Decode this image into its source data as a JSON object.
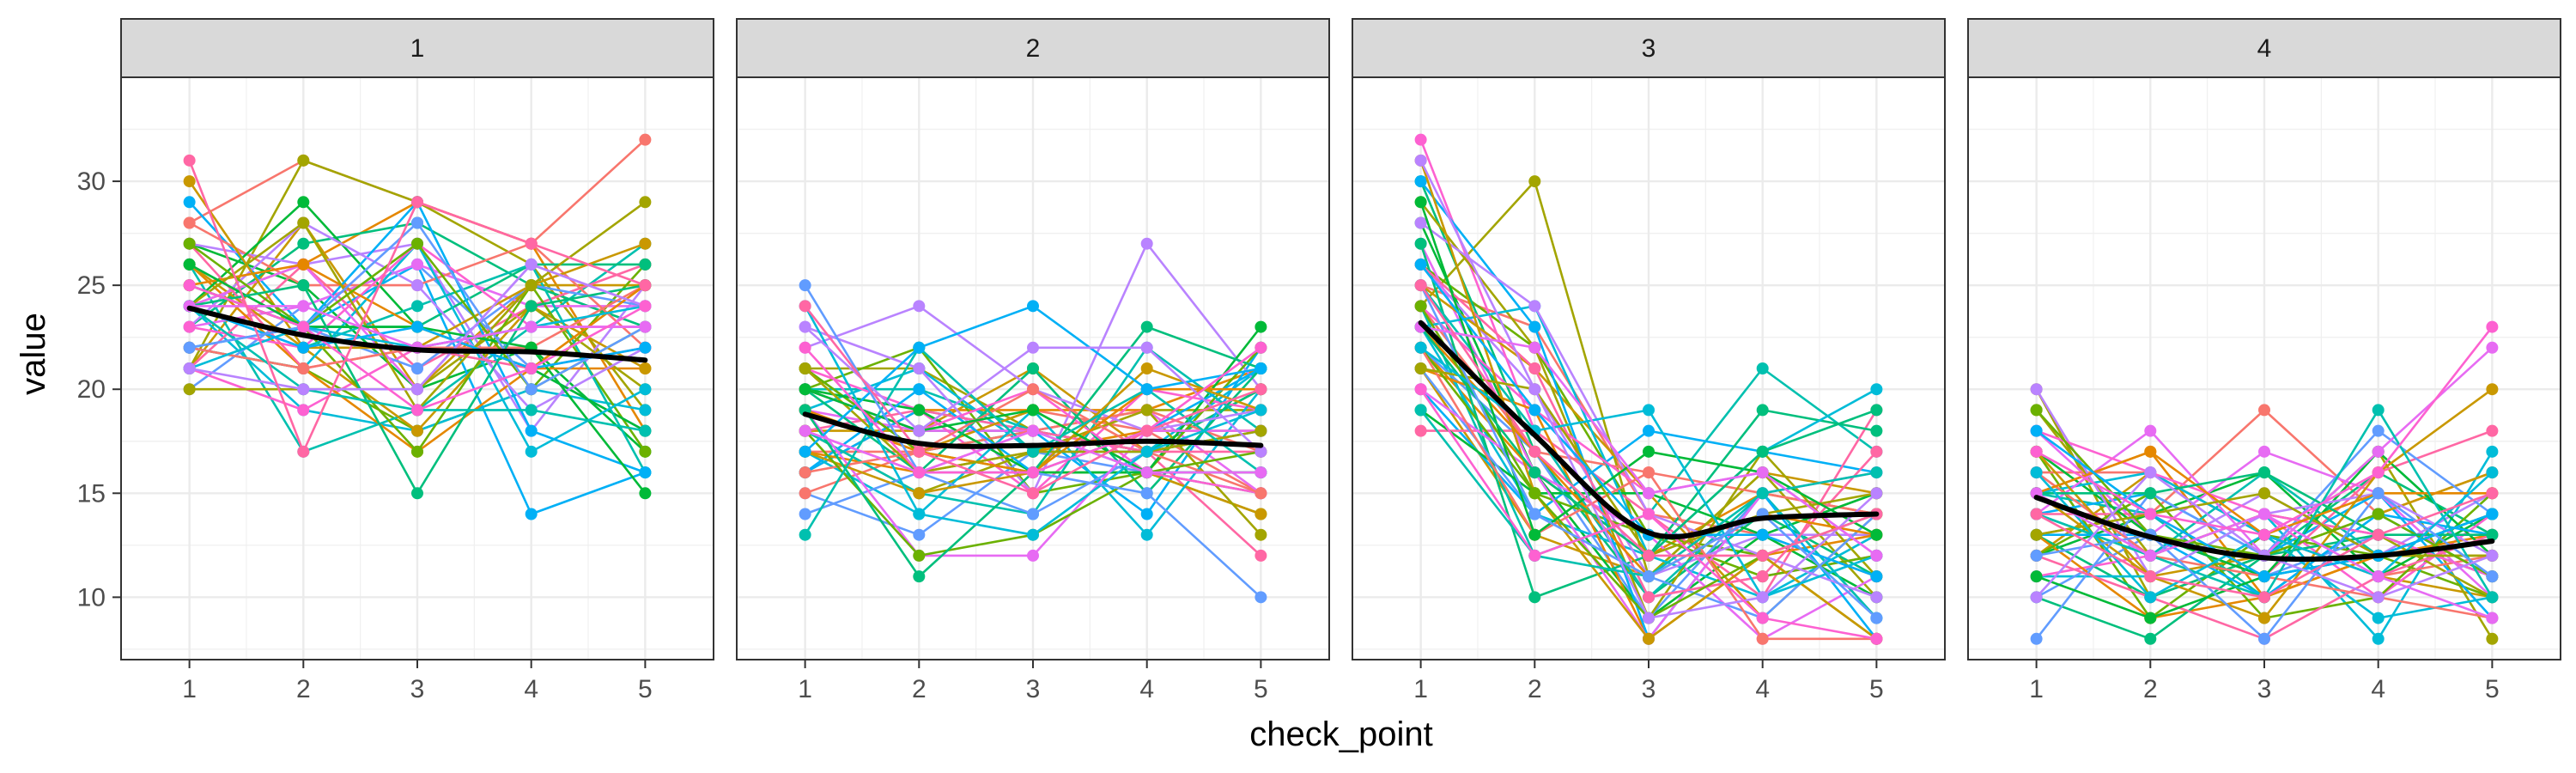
{
  "chart_data": {
    "type": "line",
    "facet_var": "",
    "panels": [
      "1",
      "2",
      "3",
      "4"
    ],
    "x": [
      1,
      2,
      3,
      4,
      5
    ],
    "xlabel": "check_point",
    "ylabel": "value",
    "ylim": [
      7,
      35
    ],
    "yticks": [
      10,
      15,
      20,
      25,
      30
    ],
    "grid": true,
    "legend": "none",
    "smooth_color": "#000000",
    "strip_fill": "#d9d9d9",
    "smooth": [
      [
        23.9,
        22.6,
        21.9,
        21.8,
        21.4
      ],
      [
        18.8,
        17.4,
        17.3,
        17.5,
        17.3
      ],
      [
        23.2,
        17.8,
        13.1,
        13.8,
        14.0
      ],
      [
        14.8,
        12.9,
        11.9,
        12.0,
        12.7
      ]
    ],
    "series_per_panel": 45,
    "series_colors": [
      "#F8766D",
      "#E58700",
      "#C99800",
      "#A3A500",
      "#6BB100",
      "#00BA38",
      "#00BF7D",
      "#00C0AF",
      "#00BCD8",
      "#00B0F6",
      "#619CFF",
      "#B983FF",
      "#E76BF3",
      "#FD61D1",
      "#FF67A4"
    ],
    "series": [
      [
        [
          28,
          31,
          29,
          27,
          32
        ],
        [
          24,
          26,
          29,
          27,
          18
        ],
        [
          21,
          28,
          20,
          25,
          25
        ],
        [
          21,
          31,
          29,
          26,
          19
        ],
        [
          22,
          21,
          18,
          20,
          26
        ],
        [
          27,
          25,
          20,
          22,
          17
        ],
        [
          23,
          27,
          28,
          25,
          23
        ],
        [
          26,
          17,
          19,
          23,
          27
        ],
        [
          24,
          19,
          18,
          20,
          19
        ],
        [
          29,
          23,
          26,
          14,
          16
        ],
        [
          20,
          24,
          26,
          21,
          18
        ],
        [
          27,
          26,
          27,
          18,
          25
        ],
        [
          23,
          24,
          26,
          24,
          24
        ],
        [
          21,
          19,
          22,
          23,
          23
        ],
        [
          21,
          26,
          21,
          24,
          26
        ],
        [
          28,
          25,
          25,
          27,
          22
        ],
        [
          26,
          21,
          17,
          21,
          21
        ],
        [
          26,
          22,
          18,
          24,
          21
        ],
        [
          20,
          20,
          20,
          24,
          20
        ],
        [
          25,
          23,
          17,
          25,
          17
        ],
        [
          24,
          29,
          23,
          21,
          18
        ],
        [
          25,
          23,
          23,
          26,
          26
        ],
        [
          24,
          22,
          24,
          26,
          16
        ],
        [
          22,
          21,
          27,
          17,
          20
        ],
        [
          22,
          23,
          29,
          18,
          16
        ],
        [
          26,
          23,
          21,
          25,
          24
        ],
        [
          23,
          28,
          25,
          19,
          22
        ],
        [
          24,
          26,
          20,
          26,
          24
        ],
        [
          23,
          22,
          27,
          23,
          23
        ],
        [
          27,
          21,
          22,
          21,
          22
        ],
        [
          22,
          21,
          22,
          22,
          25
        ],
        [
          25,
          26,
          23,
          21,
          25
        ],
        [
          30,
          22,
          22,
          25,
          27
        ],
        [
          24,
          28,
          19,
          25,
          29
        ],
        [
          27,
          23,
          27,
          20,
          23
        ],
        [
          26,
          23,
          23,
          22,
          15
        ],
        [
          24,
          25,
          15,
          24,
          25
        ],
        [
          24,
          20,
          19,
          19,
          18
        ],
        [
          21,
          23,
          22,
          23,
          24
        ],
        [
          24,
          22,
          23,
          21,
          22
        ],
        [
          22,
          23,
          28,
          20,
          23
        ],
        [
          21,
          20,
          20,
          26,
          24
        ],
        [
          24,
          24,
          22,
          23,
          23
        ],
        [
          25,
          23,
          19,
          21,
          24
        ],
        [
          31,
          17,
          29,
          27,
          25
        ]
      ],
      [
        [
          17,
          17,
          19,
          18,
          15
        ],
        [
          16,
          19,
          19,
          19,
          21
        ],
        [
          18,
          18,
          21,
          17,
          20
        ],
        [
          21,
          21,
          18,
          19,
          19
        ],
        [
          20,
          22,
          15,
          16,
          14
        ],
        [
          21,
          17,
          18,
          17,
          18
        ],
        [
          20,
          18,
          18,
          17,
          20
        ],
        [
          20,
          20,
          18,
          16,
          15
        ],
        [
          19,
          21,
          17,
          17,
          21
        ],
        [
          16,
          19,
          18,
          14,
          22
        ],
        [
          15,
          13,
          17,
          16,
          16
        ],
        [
          23,
          21,
          15,
          27,
          20
        ],
        [
          19,
          18,
          18,
          19,
          15
        ],
        [
          21,
          19,
          15,
          20,
          19
        ],
        [
          18,
          19,
          18,
          17,
          12
        ],
        [
          15,
          17,
          18,
          19,
          17
        ],
        [
          17,
          16,
          17,
          18,
          18
        ],
        [
          19,
          17,
          19,
          16,
          14
        ],
        [
          18,
          15,
          17,
          19,
          13
        ],
        [
          21,
          17,
          16,
          16,
          22
        ],
        [
          20,
          19,
          16,
          16,
          23
        ],
        [
          20,
          16,
          21,
          15,
          21
        ],
        [
          18,
          15,
          14,
          22,
          18
        ],
        [
          17,
          14,
          19,
          13,
          20
        ],
        [
          16,
          20,
          16,
          18,
          21
        ],
        [
          14,
          16,
          14,
          17,
          18
        ],
        [
          22,
          24,
          20,
          18,
          19
        ],
        [
          19,
          12,
          12,
          18,
          18
        ],
        [
          20,
          18,
          20,
          16,
          15
        ],
        [
          18,
          16,
          18,
          17,
          17
        ],
        [
          16,
          17,
          20,
          17,
          15
        ],
        [
          19,
          17,
          16,
          20,
          20
        ],
        [
          17,
          15,
          16,
          21,
          19
        ],
        [
          21,
          16,
          17,
          17,
          18
        ],
        [
          18,
          12,
          13,
          16,
          17
        ],
        [
          20,
          18,
          19,
          16,
          16
        ],
        [
          19,
          11,
          16,
          23,
          21
        ],
        [
          13,
          22,
          17,
          20,
          16
        ],
        [
          24,
          14,
          13,
          17,
          19
        ],
        [
          17,
          22,
          24,
          20,
          21
        ],
        [
          25,
          16,
          16,
          15,
          10
        ],
        [
          23,
          18,
          22,
          22,
          17
        ],
        [
          18,
          16,
          18,
          16,
          16
        ],
        [
          22,
          16,
          16,
          18,
          22
        ],
        [
          24,
          17,
          15,
          18,
          20
        ]
      ],
      [
        [
          25,
          23,
          14,
          13,
          11
        ],
        [
          22,
          16,
          12,
          15,
          14
        ],
        [
          21,
          13,
          11,
          16,
          15
        ],
        [
          24,
          30,
          11,
          16,
          10
        ],
        [
          26,
          22,
          13,
          12,
          8
        ],
        [
          28,
          16,
          9,
          13,
          10
        ],
        [
          30,
          17,
          10,
          14,
          11
        ],
        [
          24,
          12,
          14,
          21,
          17
        ],
        [
          23,
          14,
          12,
          10,
          13
        ],
        [
          20,
          14,
          18,
          17,
          16
        ],
        [
          22,
          17,
          9,
          15,
          9
        ],
        [
          26,
          20,
          11,
          13,
          13
        ],
        [
          27,
          16,
          13,
          8,
          11
        ],
        [
          32,
          18,
          10,
          11,
          12
        ],
        [
          18,
          18,
          14,
          10,
          19
        ],
        [
          24,
          17,
          16,
          15,
          14
        ],
        [
          21,
          19,
          8,
          12,
          13
        ],
        [
          25,
          21,
          15,
          9,
          14
        ],
        [
          29,
          22,
          9,
          17,
          11
        ],
        [
          22,
          15,
          13,
          11,
          12
        ],
        [
          19,
          15,
          15,
          13,
          15
        ],
        [
          27,
          10,
          12,
          19,
          18
        ],
        [
          25,
          18,
          10,
          15,
          9
        ],
        [
          23,
          24,
          12,
          17,
          20
        ],
        [
          30,
          23,
          8,
          15,
          8
        ],
        [
          21,
          14,
          11,
          9,
          14
        ],
        [
          28,
          24,
          14,
          12,
          10
        ],
        [
          20,
          16,
          8,
          15,
          16
        ],
        [
          24,
          19,
          15,
          16,
          12
        ],
        [
          26,
          21,
          10,
          11,
          17
        ],
        [
          22,
          13,
          16,
          8,
          8
        ],
        [
          23,
          17,
          11,
          14,
          13
        ],
        [
          31,
          15,
          8,
          12,
          8
        ],
        [
          21,
          20,
          12,
          14,
          15
        ],
        [
          24,
          15,
          9,
          12,
          14
        ],
        [
          29,
          13,
          17,
          16,
          13
        ],
        [
          23,
          16,
          12,
          17,
          19
        ],
        [
          19,
          12,
          11,
          15,
          16
        ],
        [
          22,
          18,
          19,
          10,
          12
        ],
        [
          26,
          19,
          13,
          13,
          11
        ],
        [
          25,
          14,
          11,
          14,
          9
        ],
        [
          31,
          20,
          9,
          10,
          15
        ],
        [
          23,
          22,
          15,
          16,
          12
        ],
        [
          20,
          12,
          14,
          9,
          8
        ],
        [
          25,
          17,
          12,
          12,
          14
        ]
      ],
      [
        [
          13,
          14,
          19,
          14,
          16
        ],
        [
          15,
          17,
          10,
          12,
          12
        ],
        [
          12,
          16,
          13,
          11,
          10
        ],
        [
          20,
          10,
          12,
          17,
          8
        ],
        [
          17,
          9,
          13,
          12,
          10
        ],
        [
          12,
          14,
          16,
          11,
          14
        ],
        [
          13,
          10,
          12,
          16,
          13
        ],
        [
          15,
          14,
          10,
          14,
          11
        ],
        [
          11,
          11,
          14,
          8,
          17
        ],
        [
          14,
          15,
          12,
          15,
          9
        ],
        [
          10,
          13,
          11,
          13,
          11
        ],
        [
          16,
          12,
          15,
          12,
          15
        ],
        [
          18,
          13,
          17,
          15,
          10
        ],
        [
          11,
          12,
          14,
          10,
          14
        ],
        [
          14,
          14,
          11,
          16,
          18
        ],
        [
          16,
          16,
          13,
          11,
          12
        ],
        [
          13,
          9,
          10,
          12,
          13
        ],
        [
          15,
          11,
          12,
          14,
          16
        ],
        [
          19,
          12,
          14,
          13,
          10
        ],
        [
          12,
          15,
          9,
          10,
          15
        ],
        [
          17,
          13,
          11,
          17,
          12
        ],
        [
          10,
          8,
          12,
          13,
          11
        ],
        [
          14,
          12,
          16,
          12,
          14
        ],
        [
          15,
          16,
          13,
          9,
          10
        ],
        [
          13,
          13,
          10,
          14,
          13
        ],
        [
          8,
          15,
          12,
          18,
          14
        ],
        [
          20,
          11,
          14,
          15,
          12
        ],
        [
          14,
          18,
          12,
          17,
          22
        ],
        [
          18,
          16,
          14,
          13,
          11
        ],
        [
          12,
          10,
          8,
          11,
          13
        ],
        [
          16,
          12,
          11,
          10,
          9
        ],
        [
          15,
          17,
          13,
          15,
          15
        ],
        [
          17,
          11,
          9,
          16,
          20
        ],
        [
          13,
          14,
          15,
          12,
          12
        ],
        [
          19,
          13,
          12,
          14,
          11
        ],
        [
          11,
          9,
          11,
          12,
          14
        ],
        [
          15,
          15,
          16,
          13,
          13
        ],
        [
          14,
          12,
          10,
          19,
          10
        ],
        [
          16,
          10,
          13,
          11,
          16
        ],
        [
          18,
          14,
          11,
          12,
          14
        ],
        [
          12,
          13,
          8,
          15,
          11
        ],
        [
          10,
          16,
          12,
          10,
          12
        ],
        [
          15,
          12,
          14,
          11,
          9
        ],
        [
          17,
          14,
          13,
          16,
          23
        ],
        [
          14,
          11,
          10,
          13,
          15
        ]
      ]
    ]
  }
}
